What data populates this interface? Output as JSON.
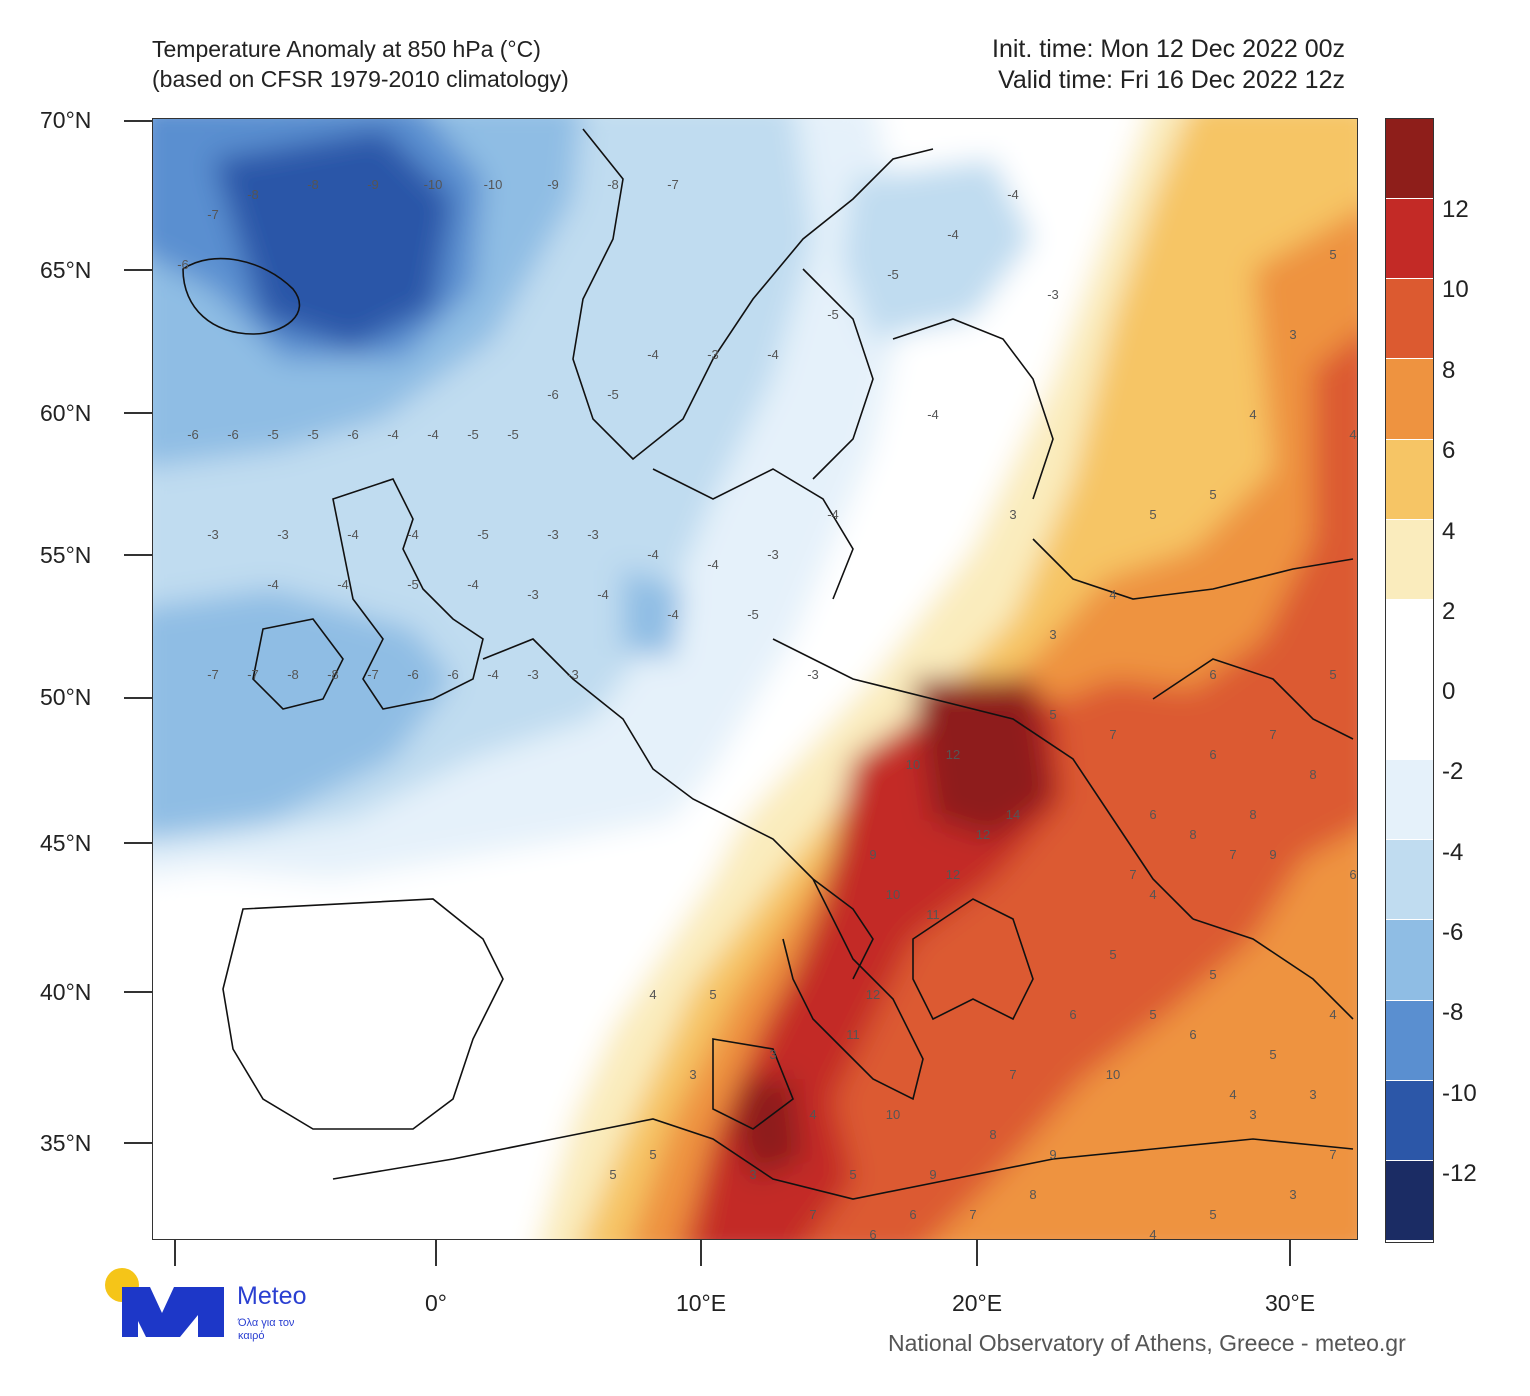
{
  "header": {
    "title_line1": "Temperature Anomaly at 850 hPa (°C)",
    "title_line2": "(based on CFSR 1979-2010 climatology)",
    "init_time": "Init. time: Mon 12 Dec 2022 00z",
    "valid_time": "Valid time: Fri 16 Dec 2022 12z"
  },
  "axes": {
    "lat_labels": [
      "70°N",
      "65°N",
      "60°N",
      "55°N",
      "50°N",
      "45°N",
      "40°N",
      "35°N"
    ],
    "lon_labels": [
      "0°",
      "10°E",
      "20°E",
      "30°E"
    ]
  },
  "colorbar": {
    "labels": [
      "12",
      "10",
      "8",
      "6",
      "4",
      "2",
      "0",
      "-2",
      "-4",
      "-6",
      "-8",
      "-10",
      "-12"
    ],
    "colors": [
      "#8e1e1a",
      "#c32a26",
      "#dc5a30",
      "#ee9340",
      "#f6c565",
      "#faecbd",
      "#ffffff",
      "#ffffff",
      "#e5f1fa",
      "#c0dcf0",
      "#8fbde4",
      "#5a8fd0",
      "#2c57a8",
      "#1b2c64"
    ]
  },
  "map_labels": [
    "-3",
    "-3",
    "-4",
    "-4",
    "-5",
    "-3",
    "-4",
    "-4",
    "-5",
    "-3",
    "-4",
    "-4",
    "-5",
    "-4",
    "-3",
    "-3",
    "-4",
    "-4",
    "-3",
    "-4",
    "-6",
    "-7",
    "-8",
    "-8",
    "-9",
    "-10",
    "-10",
    "-9",
    "-8",
    "-7",
    "-6",
    "-6",
    "-5",
    "-5",
    "-6",
    "-4",
    "-4",
    "-5",
    "-5",
    "-6",
    "-7",
    "-7",
    "-8",
    "-8",
    "-7",
    "-6",
    "-6",
    "-4",
    "-3",
    "-3",
    "-5",
    "-4",
    "-3",
    "-4",
    "-5",
    "-5",
    "-4",
    "-4",
    "-3",
    "-4",
    "3",
    "3",
    "4",
    "5",
    "5",
    "4",
    "3",
    "5",
    "6",
    "7",
    "8",
    "6",
    "7",
    "5",
    "6",
    "7",
    "9",
    "8",
    "8",
    "7",
    "10",
    "12",
    "12",
    "14",
    "12",
    "9",
    "10",
    "11",
    "12",
    "11",
    "10",
    "9",
    "8",
    "7",
    "6",
    "5",
    "4",
    "5",
    "3",
    "7",
    "5",
    "3",
    "4",
    "5",
    "6",
    "7",
    "8",
    "9",
    "10",
    "6",
    "5",
    "4",
    "3",
    "5",
    "4",
    "5",
    "3",
    "3",
    "7",
    "6",
    "4",
    "5",
    "5",
    "4",
    "3",
    "6",
    "5",
    "4"
  ],
  "logo": {
    "name": "Meteo",
    "tagline": "Όλα για τον καιρό"
  },
  "credit": "National Observatory of Athens, Greece - meteo.gr"
}
